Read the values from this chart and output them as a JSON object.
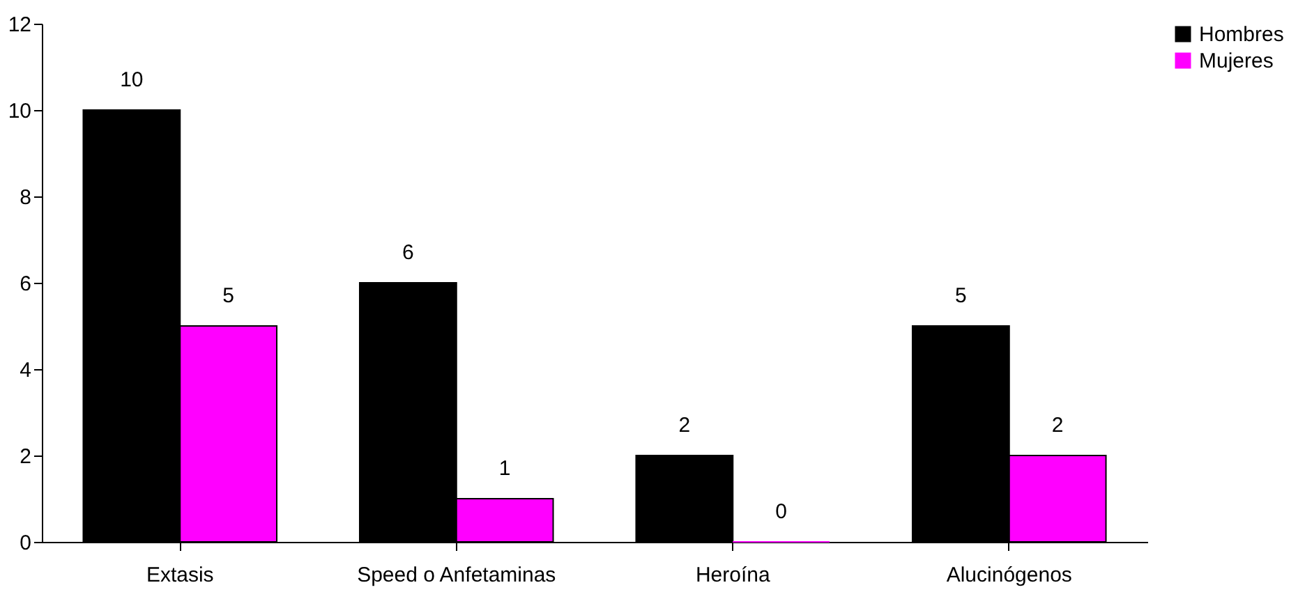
{
  "chart_data": {
    "type": "bar",
    "categories": [
      "Extasis",
      "Speed o Anfetaminas",
      "Heroína",
      "Alucinógenos"
    ],
    "series": [
      {
        "name": "Hombres",
        "color": "#000000",
        "values": [
          10,
          6,
          2,
          5
        ]
      },
      {
        "name": "Mujeres",
        "color": "#ff00ff",
        "values": [
          5,
          1,
          0,
          2
        ]
      }
    ],
    "ylim": [
      0,
      12
    ],
    "yticks": [
      0,
      2,
      4,
      6,
      8,
      10,
      12
    ],
    "grid": false,
    "legend": "right",
    "data_labels": true
  }
}
